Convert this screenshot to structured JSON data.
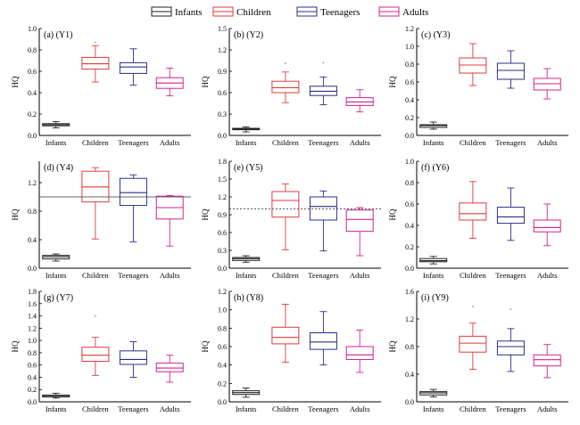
{
  "legend": [
    {
      "label": "Infants",
      "color": "#222222"
    },
    {
      "label": "Children",
      "color": "#e03a3a"
    },
    {
      "label": "Teenagers",
      "color": "#2a2f86"
    },
    {
      "label": "Adults",
      "color": "#d6208a"
    }
  ],
  "chart_data": [
    {
      "type": "box",
      "title": "(a)  (Y1)",
      "ylabel": "HQ",
      "ylim": [
        0,
        1.0
      ],
      "yticks": [
        "0.0",
        "0.2",
        "0.4",
        "0.6",
        "0.8",
        "1.0"
      ],
      "ytick_values": [
        0,
        0.2,
        0.4,
        0.6,
        0.8,
        1.0
      ],
      "categories": [
        "Infants",
        "Children",
        "Teenagers",
        "Adults"
      ],
      "reference_line": null,
      "boxes": [
        {
          "min": 0.07,
          "q1": 0.09,
          "median": 0.1,
          "q3": 0.11,
          "max": 0.13,
          "outliers": []
        },
        {
          "min": 0.5,
          "q1": 0.62,
          "median": 0.67,
          "q3": 0.73,
          "max": 0.84,
          "outliers": [
            0.87
          ]
        },
        {
          "min": 0.47,
          "q1": 0.58,
          "median": 0.64,
          "q3": 0.68,
          "max": 0.81,
          "outliers": []
        },
        {
          "min": 0.37,
          "q1": 0.44,
          "median": 0.49,
          "q3": 0.54,
          "max": 0.63,
          "outliers": []
        }
      ]
    },
    {
      "type": "box",
      "title": "(b)  (Y2)",
      "ylabel": "HQ",
      "ylim": [
        0,
        1.5
      ],
      "yticks": [
        "0.0",
        "0.3",
        "0.6",
        "0.9",
        "1.2",
        "1.5"
      ],
      "ytick_values": [
        0,
        0.3,
        0.6,
        0.9,
        1.2,
        1.5
      ],
      "categories": [
        "Infants",
        "Children",
        "Teenagers",
        "Adults"
      ],
      "reference_line": null,
      "boxes": [
        {
          "min": 0.05,
          "q1": 0.08,
          "median": 0.09,
          "q3": 0.1,
          "max": 0.12,
          "outliers": []
        },
        {
          "min": 0.46,
          "q1": 0.6,
          "median": 0.67,
          "q3": 0.76,
          "max": 0.89,
          "outliers": [
            1.01
          ]
        },
        {
          "min": 0.43,
          "q1": 0.56,
          "median": 0.62,
          "q3": 0.69,
          "max": 0.82,
          "outliers": [
            1.02
          ]
        },
        {
          "min": 0.33,
          "q1": 0.42,
          "median": 0.47,
          "q3": 0.53,
          "max": 0.64,
          "outliers": []
        }
      ]
    },
    {
      "type": "box",
      "title": "(c)  (Y3)",
      "ylabel": "HQ",
      "ylim": [
        0,
        1.2
      ],
      "yticks": [
        "0.0",
        "0.2",
        "0.4",
        "0.6",
        "0.8",
        "1.0",
        "1.2"
      ],
      "ytick_values": [
        0,
        0.2,
        0.4,
        0.6,
        0.8,
        1.0,
        1.2
      ],
      "categories": [
        "Infants",
        "Children",
        "Teenagers",
        "Adults"
      ],
      "reference_line": null,
      "boxes": [
        {
          "min": 0.07,
          "q1": 0.09,
          "median": 0.11,
          "q3": 0.12,
          "max": 0.15,
          "outliers": []
        },
        {
          "min": 0.56,
          "q1": 0.7,
          "median": 0.79,
          "q3": 0.87,
          "max": 1.03,
          "outliers": []
        },
        {
          "min": 0.53,
          "q1": 0.63,
          "median": 0.73,
          "q3": 0.81,
          "max": 0.95,
          "outliers": []
        },
        {
          "min": 0.41,
          "q1": 0.51,
          "median": 0.58,
          "q3": 0.64,
          "max": 0.75,
          "outliers": []
        }
      ]
    },
    {
      "type": "box",
      "title": "(d)  (Y4)",
      "ylabel": "HQ",
      "ylim": [
        0,
        1.5
      ],
      "yticks": [
        "0.0",
        "0.4",
        "0.8",
        "1.2"
      ],
      "ytick_values": [
        0,
        0.4,
        0.8,
        1.2
      ],
      "categories": [
        "Infants",
        "Children",
        "Teenagers",
        "Adults"
      ],
      "reference_line": {
        "value": 1.0,
        "style": "solid"
      },
      "boxes": [
        {
          "min": 0.1,
          "q1": 0.13,
          "median": 0.16,
          "q3": 0.18,
          "max": 0.2,
          "outliers": []
        },
        {
          "min": 0.41,
          "q1": 0.93,
          "median": 1.14,
          "q3": 1.36,
          "max": 1.41,
          "outliers": []
        },
        {
          "min": 0.37,
          "q1": 0.88,
          "median": 1.06,
          "q3": 1.26,
          "max": 1.31,
          "outliers": []
        },
        {
          "min": 0.31,
          "q1": 0.69,
          "median": 0.85,
          "q3": 1.01,
          "max": 1.02,
          "outliers": []
        }
      ]
    },
    {
      "type": "box",
      "title": "(e)  (Y5)",
      "ylabel": "HQ",
      "ylim": [
        0,
        1.8
      ],
      "yticks": [
        "0.0",
        "0.3",
        "0.6",
        "0.9",
        "1.2",
        "1.5",
        "1.8"
      ],
      "ytick_values": [
        0,
        0.3,
        0.6,
        0.9,
        1.2,
        1.5,
        1.8
      ],
      "categories": [
        "Infants",
        "Children",
        "Teenagers",
        "Adults"
      ],
      "reference_line": {
        "value": 1.0,
        "style": "dashed"
      },
      "boxes": [
        {
          "min": 0.1,
          "q1": 0.13,
          "median": 0.16,
          "q3": 0.18,
          "max": 0.21,
          "outliers": []
        },
        {
          "min": 0.31,
          "q1": 0.86,
          "median": 1.14,
          "q3": 1.29,
          "max": 1.42,
          "outliers": []
        },
        {
          "min": 0.29,
          "q1": 0.81,
          "median": 1.04,
          "q3": 1.2,
          "max": 1.3,
          "outliers": []
        },
        {
          "min": 0.21,
          "q1": 0.62,
          "median": 0.82,
          "q3": 0.98,
          "max": 1.02,
          "outliers": []
        }
      ]
    },
    {
      "type": "box",
      "title": "(f)  (Y6)",
      "ylabel": "HQ",
      "ylim": [
        0,
        1.0
      ],
      "yticks": [
        "0.0",
        "0.2",
        "0.4",
        "0.6",
        "0.8",
        "1.0"
      ],
      "ytick_values": [
        0,
        0.2,
        0.4,
        0.6,
        0.8,
        1.0
      ],
      "categories": [
        "Infants",
        "Children",
        "Teenagers",
        "Adults"
      ],
      "reference_line": null,
      "boxes": [
        {
          "min": 0.04,
          "q1": 0.06,
          "median": 0.07,
          "q3": 0.09,
          "max": 0.11,
          "outliers": []
        },
        {
          "min": 0.28,
          "q1": 0.45,
          "median": 0.51,
          "q3": 0.61,
          "max": 0.81,
          "outliers": []
        },
        {
          "min": 0.26,
          "q1": 0.42,
          "median": 0.48,
          "q3": 0.57,
          "max": 0.75,
          "outliers": []
        },
        {
          "min": 0.21,
          "q1": 0.34,
          "median": 0.38,
          "q3": 0.45,
          "max": 0.6,
          "outliers": []
        }
      ]
    },
    {
      "type": "box",
      "title": "(g)  (Y7)",
      "ylabel": "HQ",
      "ylim": [
        0,
        1.8
      ],
      "yticks": [
        "0.0",
        "0.2",
        "0.4",
        "0.6",
        "0.8",
        "1.0",
        "1.2",
        "1.4",
        "1.6",
        "1.8"
      ],
      "ytick_values": [
        0,
        0.2,
        0.4,
        0.6,
        0.8,
        1.0,
        1.2,
        1.4,
        1.6,
        1.8
      ],
      "categories": [
        "Infants",
        "Children",
        "Teenagers",
        "Adults"
      ],
      "reference_line": null,
      "boxes": [
        {
          "min": 0.06,
          "q1": 0.08,
          "median": 0.1,
          "q3": 0.11,
          "max": 0.14,
          "outliers": []
        },
        {
          "min": 0.43,
          "q1": 0.66,
          "median": 0.76,
          "q3": 0.89,
          "max": 1.05,
          "outliers": [
            1.4
          ]
        },
        {
          "min": 0.4,
          "q1": 0.61,
          "median": 0.69,
          "q3": 0.83,
          "max": 0.98,
          "outliers": []
        },
        {
          "min": 0.32,
          "q1": 0.49,
          "median": 0.55,
          "q3": 0.63,
          "max": 0.76,
          "outliers": []
        }
      ]
    },
    {
      "type": "box",
      "title": "(h)  (Y8)",
      "ylabel": "HQ",
      "ylim": [
        0,
        1.2
      ],
      "yticks": [
        "0.0",
        "0.2",
        "0.4",
        "0.6",
        "0.8",
        "1.0",
        "1.2"
      ],
      "ytick_values": [
        0,
        0.2,
        0.4,
        0.6,
        0.8,
        1.0,
        1.2
      ],
      "categories": [
        "Infants",
        "Children",
        "Teenagers",
        "Adults"
      ],
      "reference_line": null,
      "boxes": [
        {
          "min": 0.05,
          "q1": 0.08,
          "median": 0.1,
          "q3": 0.12,
          "max": 0.15,
          "outliers": []
        },
        {
          "min": 0.43,
          "q1": 0.63,
          "median": 0.7,
          "q3": 0.81,
          "max": 1.06,
          "outliers": []
        },
        {
          "min": 0.4,
          "q1": 0.57,
          "median": 0.65,
          "q3": 0.75,
          "max": 0.98,
          "outliers": []
        },
        {
          "min": 0.32,
          "q1": 0.46,
          "median": 0.51,
          "q3": 0.6,
          "max": 0.78,
          "outliers": []
        }
      ]
    },
    {
      "type": "box",
      "title": "(i)  (Y9)",
      "ylabel": "HQ",
      "ylim": [
        0,
        1.6
      ],
      "yticks": [
        "0.0",
        "0.4",
        "0.8",
        "1.2",
        "1.6"
      ],
      "ytick_values": [
        0,
        0.4,
        0.8,
        1.2,
        1.6
      ],
      "categories": [
        "Infants",
        "Children",
        "Teenagers",
        "Adults"
      ],
      "reference_line": null,
      "boxes": [
        {
          "min": 0.07,
          "q1": 0.1,
          "median": 0.13,
          "q3": 0.15,
          "max": 0.18,
          "outliers": []
        },
        {
          "min": 0.47,
          "q1": 0.72,
          "median": 0.85,
          "q3": 0.95,
          "max": 1.14,
          "outliers": [
            1.38
          ]
        },
        {
          "min": 0.44,
          "q1": 0.68,
          "median": 0.8,
          "q3": 0.88,
          "max": 1.06,
          "outliers": [
            1.34
          ]
        },
        {
          "min": 0.35,
          "q1": 0.52,
          "median": 0.61,
          "q3": 0.68,
          "max": 0.83,
          "outliers": []
        }
      ]
    }
  ]
}
